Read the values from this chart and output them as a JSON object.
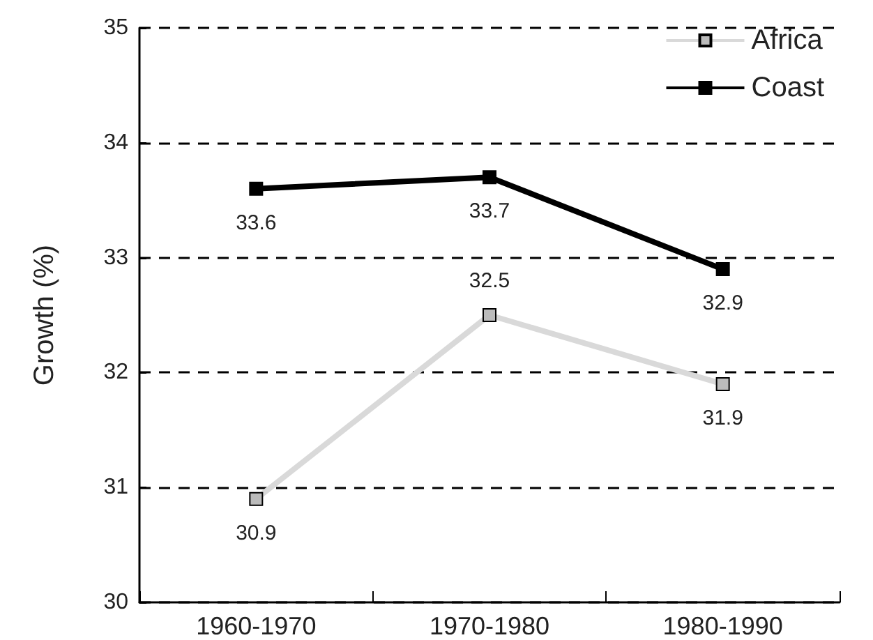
{
  "chart_data": {
    "type": "line",
    "ylabel": "Growth (%)",
    "categories": [
      "1960-1970",
      "1970-1980",
      "1980-1990"
    ],
    "series": [
      {
        "name": "Africa",
        "color": "#d9d9d9",
        "values": [
          30.9,
          32.5,
          31.9
        ]
      },
      {
        "name": "Coast",
        "color": "#000000",
        "values": [
          33.6,
          33.7,
          32.9
        ]
      }
    ],
    "ylim": [
      30,
      35
    ],
    "yticks": [
      30,
      31,
      32,
      33,
      34,
      35
    ],
    "grid": "y",
    "legend": "top right",
    "marker": "square",
    "data_labels": true
  }
}
